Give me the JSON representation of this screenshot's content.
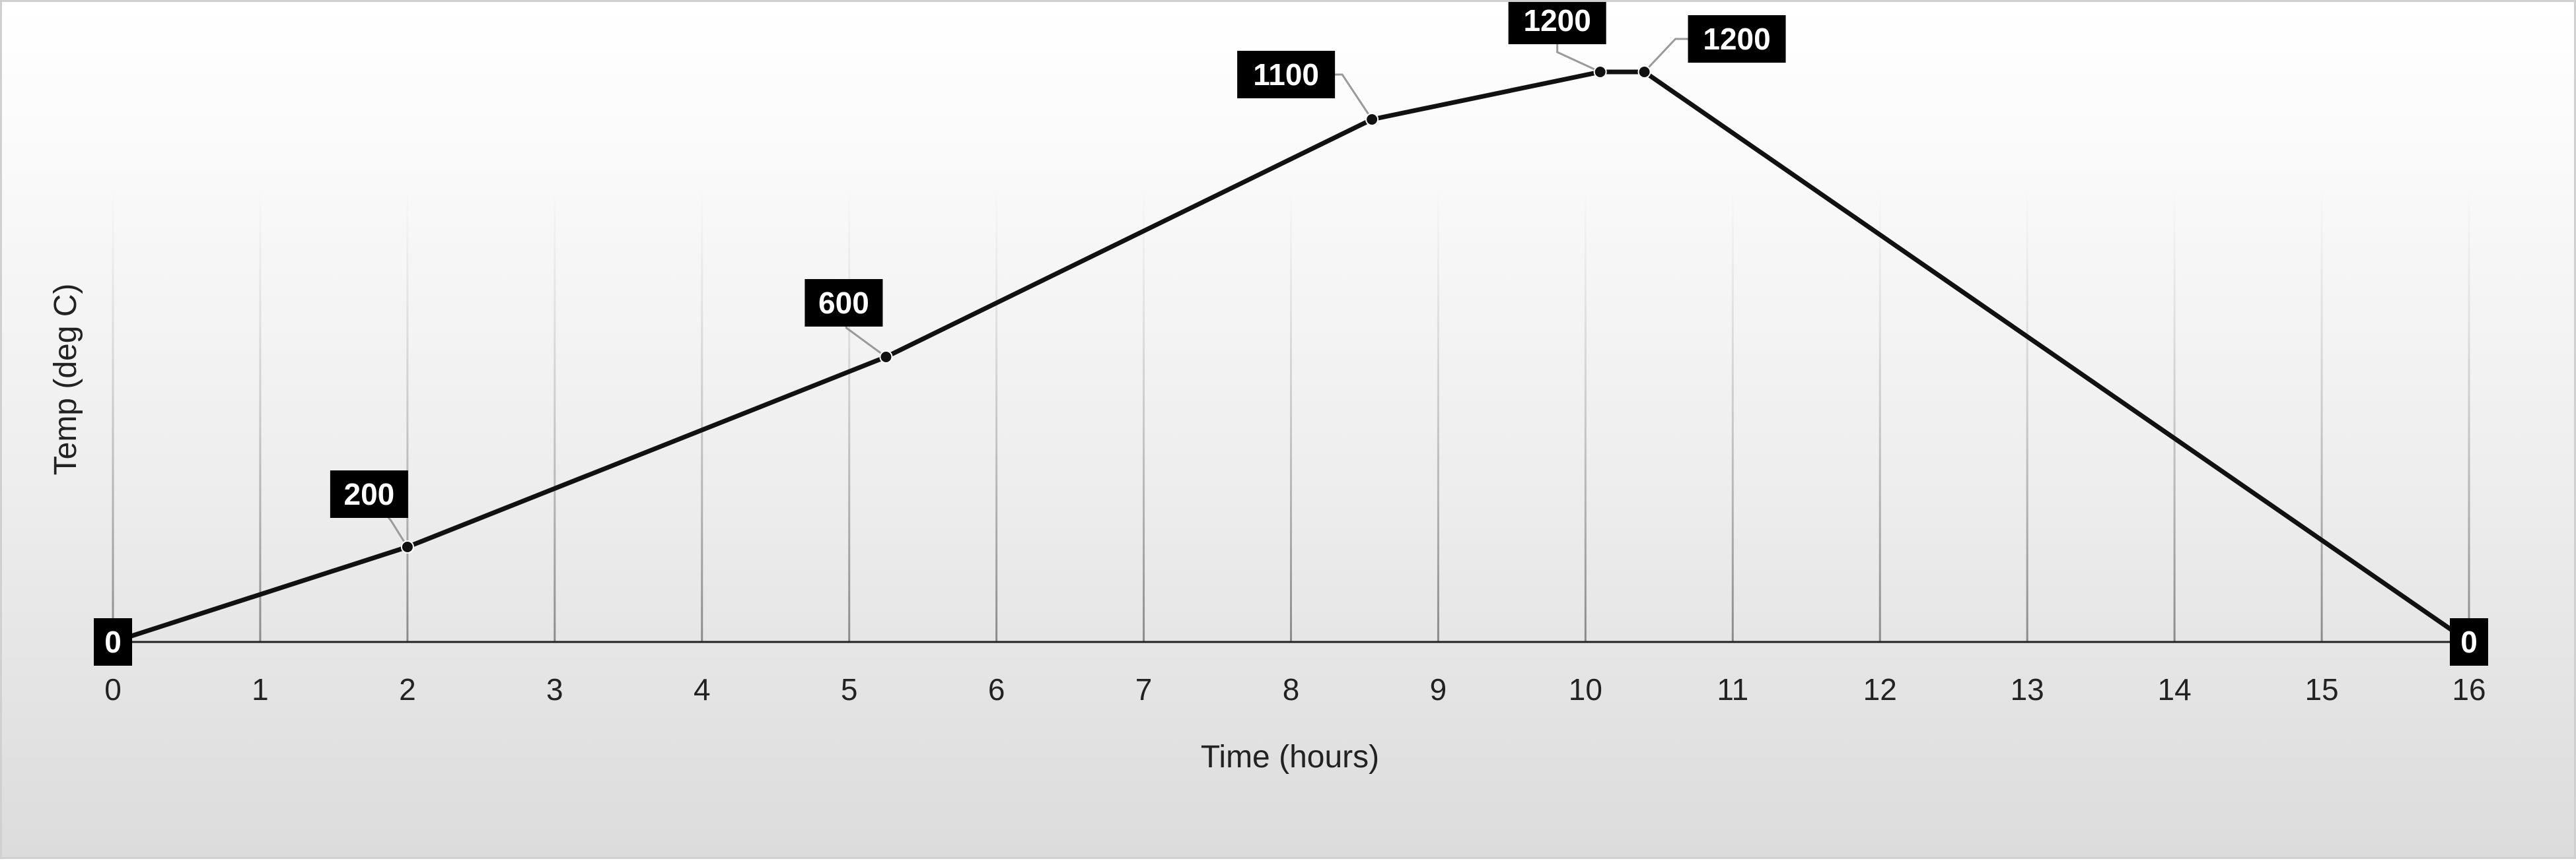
{
  "chart_data": {
    "type": "line",
    "title": "",
    "xlabel": "Time (hours)",
    "ylabel": "Temp (deg C)",
    "xlim": [
      0,
      16
    ],
    "ylim": [
      0,
      1300
    ],
    "x_ticks": [
      "0",
      "1",
      "2",
      "3",
      "4",
      "5",
      "6",
      "7",
      "8",
      "9",
      "10",
      "11",
      "12",
      "13",
      "14",
      "15",
      "16"
    ],
    "grid": "vertical",
    "legend": "none",
    "line_color": "#111111",
    "points": [
      {
        "x": 0,
        "y": 0,
        "label": "0"
      },
      {
        "x": 2,
        "y": 200,
        "label": "200"
      },
      {
        "x": 5.25,
        "y": 600,
        "label": "600"
      },
      {
        "x": 8.55,
        "y": 1100,
        "label": "1100"
      },
      {
        "x": 10.1,
        "y": 1200,
        "label": "1200"
      },
      {
        "x": 10.4,
        "y": 1200,
        "label": "1200"
      },
      {
        "x": 16,
        "y": 0,
        "label": "0"
      }
    ]
  }
}
